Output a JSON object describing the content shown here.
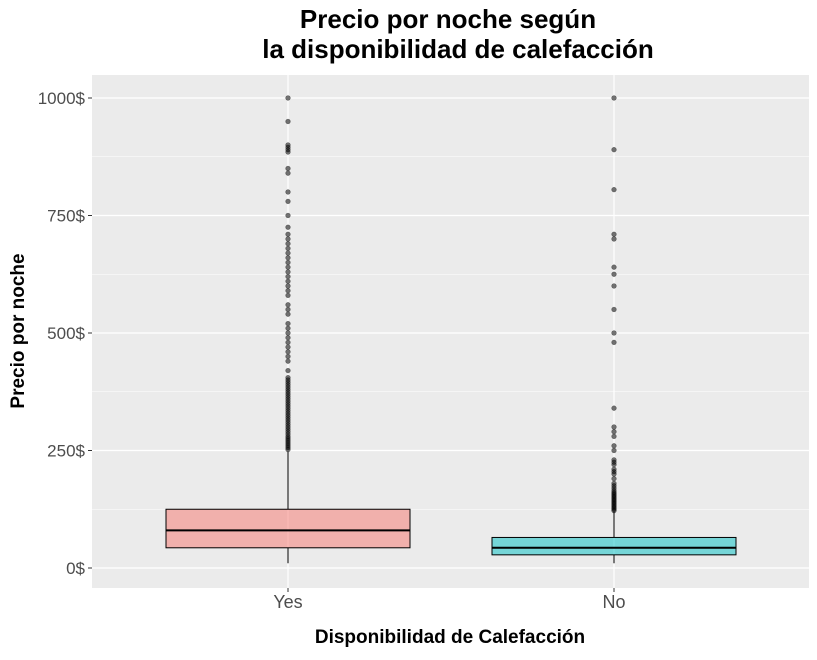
{
  "chart_data": {
    "type": "box",
    "title_lines": [
      "Precio por noche según",
      "la disponibilidad de calefacción"
    ],
    "xlabel": "Disponibilidad de Calefacción",
    "ylabel": "Precio por noche",
    "ylim": [
      -50,
      1050
    ],
    "yticks": [
      0,
      250,
      500,
      750,
      1000
    ],
    "ytick_labels": [
      "0$",
      "250$",
      "500$",
      "750$",
      "1000$"
    ],
    "grid": true,
    "legend": "none",
    "categories": [
      "Yes",
      "No"
    ],
    "boxes": [
      {
        "category": "Yes",
        "color": "#F8766D",
        "whisker_low": 10,
        "q1": 43,
        "median": 80,
        "q3": 125,
        "whisker_high": 248,
        "outliers": [
          252,
          256,
          260,
          264,
          268,
          272,
          276,
          280,
          285,
          290,
          295,
          300,
          305,
          310,
          315,
          320,
          325,
          330,
          335,
          340,
          345,
          350,
          355,
          360,
          365,
          370,
          375,
          380,
          385,
          390,
          395,
          400,
          405,
          420,
          440,
          450,
          460,
          470,
          480,
          490,
          500,
          510,
          520,
          540,
          550,
          560,
          580,
          590,
          600,
          610,
          620,
          630,
          640,
          650,
          660,
          670,
          680,
          690,
          700,
          710,
          725,
          750,
          780,
          800,
          840,
          850,
          885,
          890,
          895,
          900,
          950,
          1000
        ]
      },
      {
        "category": "No",
        "color": "#00BFC4",
        "whisker_low": 10,
        "q1": 28,
        "median": 43,
        "q3": 65,
        "whisker_high": 120,
        "outliers": [
          122,
          125,
          128,
          131,
          134,
          137,
          140,
          143,
          146,
          149,
          152,
          155,
          158,
          161,
          165,
          170,
          175,
          180,
          190,
          200,
          205,
          210,
          220,
          225,
          230,
          250,
          260,
          280,
          290,
          300,
          340,
          480,
          500,
          550,
          600,
          625,
          640,
          700,
          710,
          805,
          890,
          1000
        ]
      }
    ]
  }
}
